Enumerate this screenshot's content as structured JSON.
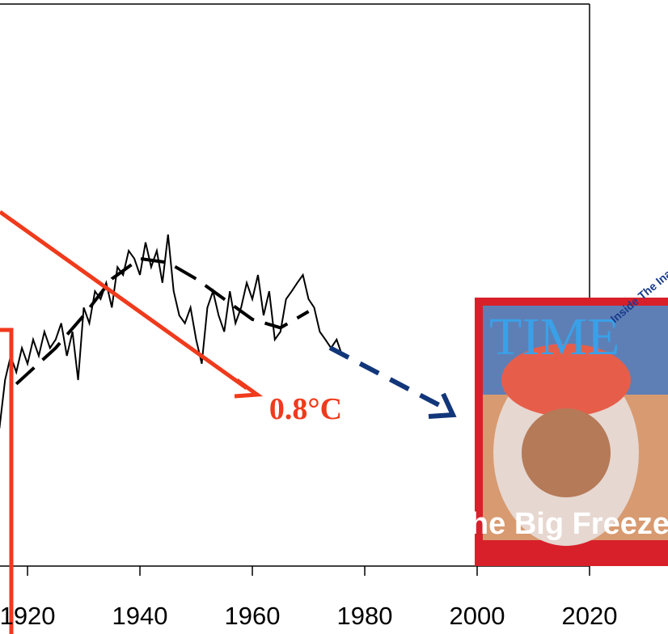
{
  "chart_data": {
    "type": "line",
    "x": [
      1915,
      1916,
      1917,
      1918,
      1919,
      1920,
      1921,
      1922,
      1923,
      1924,
      1925,
      1926,
      1927,
      1928,
      1929,
      1930,
      1931,
      1932,
      1933,
      1934,
      1935,
      1936,
      1937,
      1938,
      1939,
      1940,
      1941,
      1942,
      1943,
      1944,
      1945,
      1946,
      1947,
      1948,
      1949,
      1950,
      1951,
      1952,
      1953,
      1954,
      1955,
      1956,
      1957,
      1958,
      1959,
      1960,
      1961,
      1962,
      1963,
      1964,
      1965,
      1966,
      1967,
      1968,
      1969,
      1970,
      1971,
      1972,
      1973,
      1974,
      1975,
      1976
    ],
    "series": [
      {
        "color": "#000000",
        "values": [
          24.5,
          33.1,
          37.4,
          34.5,
          38.8,
          36.0,
          40.3,
          37.4,
          41.7,
          38.8,
          40.3,
          43.2,
          37.4,
          41.7,
          33.1,
          46.0,
          43.2,
          48.9,
          47.5,
          50.4,
          46.0,
          53.2,
          51.8,
          56.1,
          54.7,
          51.8,
          57.6,
          53.2,
          56.1,
          50.4,
          59.0,
          48.9,
          44.6,
          43.2,
          46.0,
          40.3,
          36.0,
          46.0,
          48.9,
          44.6,
          41.7,
          48.9,
          43.2,
          46.0,
          50.4,
          47.5,
          51.8,
          44.6,
          48.9,
          40.3,
          41.7,
          47.5,
          48.9,
          50.4,
          51.8,
          47.5,
          46.0,
          41.7,
          40.3,
          38.8,
          40.3,
          37.4
        ]
      }
    ],
    "smooth": {
      "color": "#000000",
      "x": [
        1918,
        1925,
        1930,
        1935,
        1940,
        1945,
        1950,
        1955,
        1960,
        1965,
        1970
      ],
      "values": [
        32.4,
        38.8,
        44.6,
        51.1,
        54.7,
        54.0,
        51.1,
        47.5,
        43.9,
        42.4,
        45.3
      ]
    },
    "xlim": [
      1915.1,
      2020
    ],
    "xticks": [
      1920,
      1940,
      1960,
      1980,
      2000,
      2020
    ],
    "ylim": [
      0,
      100
    ],
    "annotations": {
      "label": "0.8°C",
      "cover_title": "TIME",
      "cover_corner": "Inside The Inauguration in Color",
      "cover_headline": "The Big Freeze"
    }
  }
}
